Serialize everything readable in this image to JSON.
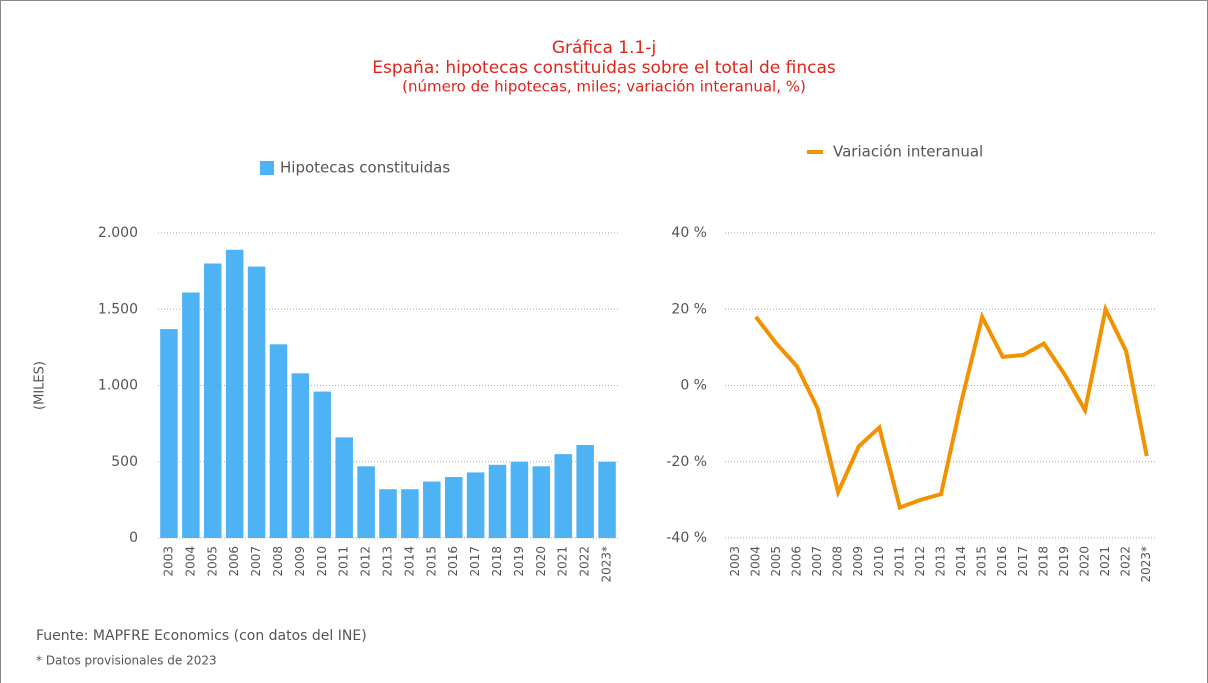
{
  "header": {
    "title": "Gráfica 1.1-j",
    "subtitle": "España: hipotecas constituidas sobre el total de fincas",
    "note": "(número de hipotecas, miles; variación interanual, %)"
  },
  "chart_data": [
    {
      "type": "bar",
      "y_label": "(MILES)",
      "categories": [
        "2003",
        "2004",
        "2005",
        "2006",
        "2007",
        "2008",
        "2009",
        "2010",
        "2011",
        "2012",
        "2013",
        "2014",
        "2015",
        "2016",
        "2017",
        "2018",
        "2019",
        "2020",
        "2021",
        "2022",
        "2023*"
      ],
      "series": [
        {
          "name": "Hipotecas constituidas",
          "color": "#4db3f5",
          "values": [
            1370,
            1610,
            1800,
            1890,
            1780,
            1270,
            1080,
            960,
            660,
            470,
            320,
            320,
            370,
            400,
            430,
            480,
            500,
            470,
            550,
            610,
            500
          ]
        }
      ],
      "ylim": [
        0,
        2000
      ],
      "yticks": [
        0,
        500,
        {
          "value": 1000,
          "label": "1.000"
        },
        {
          "value": 1500,
          "label": "1.500"
        },
        {
          "value": 2000,
          "label": "2.000"
        }
      ],
      "grid": true
    },
    {
      "type": "line",
      "categories": [
        "2003",
        "2004",
        "2005",
        "2006",
        "2007",
        "2008",
        "2009",
        "2010",
        "2011",
        "2012",
        "2013",
        "2014",
        "2015",
        "2016",
        "2017",
        "2018",
        "2019",
        "2020",
        "2021",
        "2022",
        "2023*"
      ],
      "series": [
        {
          "name": "Variación interanual",
          "color": "#f39200",
          "values": [
            null,
            18,
            11,
            5,
            -6,
            -28,
            -16,
            -11,
            -32,
            -30,
            -28.5,
            -4,
            18,
            7.5,
            8,
            11,
            3,
            -6.5,
            20,
            9,
            -18.5
          ]
        }
      ],
      "ylim": [
        -40,
        40
      ],
      "yticks": [
        {
          "value": -40,
          "label": "-40 %"
        },
        {
          "value": -20,
          "label": "-20 %"
        },
        {
          "value": 0,
          "label": "0 %"
        },
        {
          "value": 20,
          "label": "20 %"
        },
        {
          "value": 40,
          "label": "40 %"
        }
      ],
      "grid": true
    }
  ],
  "footer": {
    "source": "Fuente: MAPFRE Economics (con datos del INE)",
    "note": "* Datos provisionales de 2023"
  }
}
